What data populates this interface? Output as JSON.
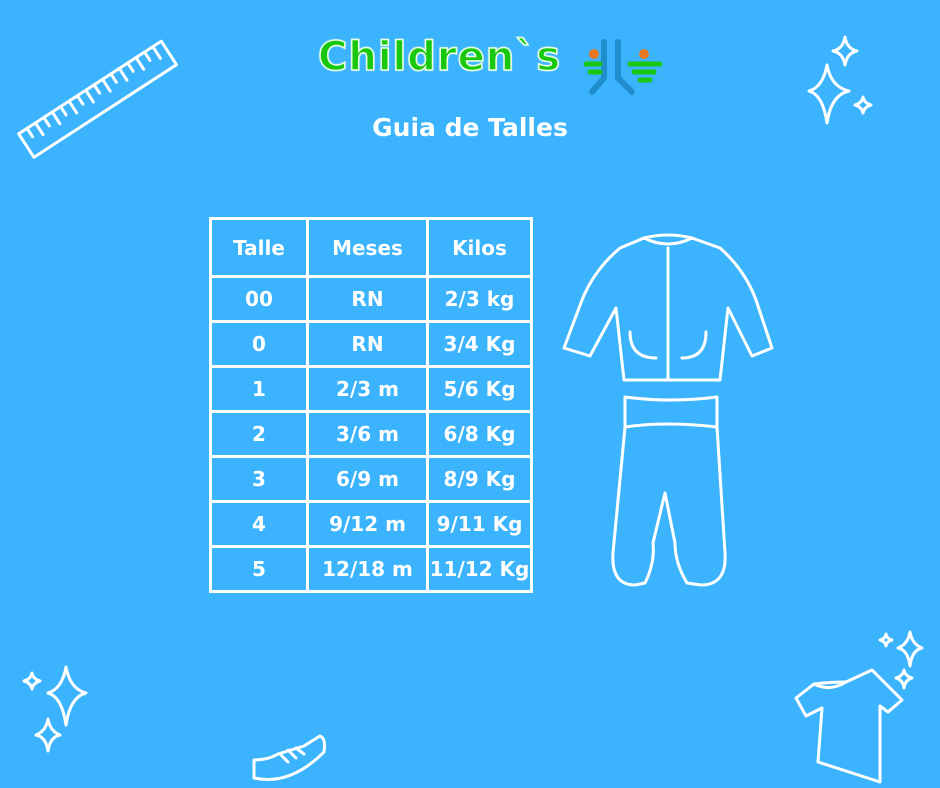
{
  "brand": {
    "name": "Children`s",
    "logo_colors": [
      "#19c80e",
      "#1e8ecf",
      "#e87722"
    ]
  },
  "title": "Guia de Talles",
  "table": {
    "headers": [
      "Talle",
      "Meses",
      "Kilos"
    ],
    "rows": [
      [
        "00",
        "RN",
        "2/3 kg"
      ],
      [
        "0",
        "RN",
        "3/4 Kg"
      ],
      [
        "1",
        "2/3 m",
        "5/6 Kg"
      ],
      [
        "2",
        "3/6 m",
        "6/8 Kg"
      ],
      [
        "3",
        "6/9 m",
        "8/9 Kg"
      ],
      [
        "4",
        "9/12 m",
        "9/11 Kg"
      ],
      [
        "5",
        "12/18 m",
        "11/12 Kg"
      ]
    ]
  },
  "colors": {
    "background": "#3bb4fd",
    "lines": "#ffffff"
  },
  "decorations": [
    "ruler-icon",
    "sparkles-icon",
    "jacket-icon",
    "pants-icon",
    "shoe-icon",
    "tshirt-icon"
  ]
}
